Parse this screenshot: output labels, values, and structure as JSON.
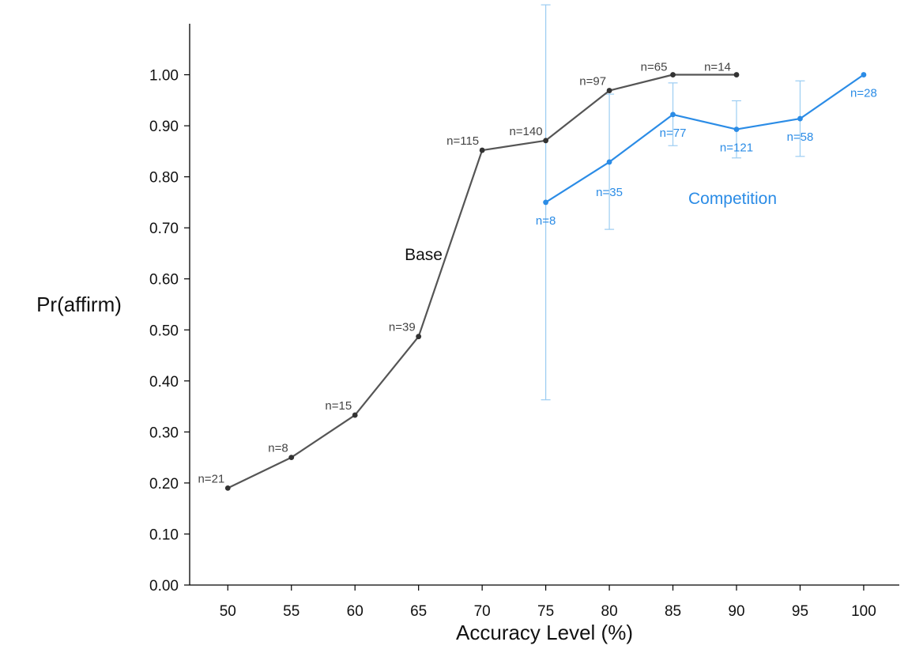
{
  "chart_data": {
    "type": "line",
    "xlabel": "Accuracy Level (%)",
    "ylabel": "Pr(affirm)",
    "xlim": [
      47,
      102.8
    ],
    "ylim": [
      0,
      1.1
    ],
    "x_ticks": [
      "50",
      "55",
      "60",
      "65",
      "70",
      "75",
      "80",
      "85",
      "90",
      "95",
      "100"
    ],
    "y_ticks": [
      "0.00",
      "0.10",
      "0.20",
      "0.30",
      "0.40",
      "0.50",
      "0.60",
      "0.70",
      "0.80",
      "0.90",
      "1.00"
    ],
    "grid": false,
    "series": [
      {
        "name": "Base",
        "color": "#555555",
        "marker_color": "#333333",
        "points": [
          {
            "x": 50,
            "y": 0.19,
            "n": "n=21"
          },
          {
            "x": 55,
            "y": 0.25,
            "n": "n=8"
          },
          {
            "x": 60,
            "y": 0.333,
            "n": "n=15"
          },
          {
            "x": 65,
            "y": 0.487,
            "n": "n=39"
          },
          {
            "x": 70,
            "y": 0.852,
            "n": "n=115"
          },
          {
            "x": 75,
            "y": 0.871,
            "n": "n=140"
          },
          {
            "x": 80,
            "y": 0.969,
            "n": "n=97"
          },
          {
            "x": 85,
            "y": 1.0,
            "n": "n=65"
          },
          {
            "x": 90,
            "y": 1.0,
            "n": "n=14"
          }
        ]
      },
      {
        "name": "Competition",
        "color": "#2b8ce6",
        "marker_color": "#2b8ce6",
        "error_color": "#9ccdf2",
        "points": [
          {
            "x": 75,
            "y": 0.75,
            "n": "n=8",
            "lo": 0.363,
            "hi": 1.137
          },
          {
            "x": 80,
            "y": 0.829,
            "n": "n=35",
            "lo": 0.697,
            "hi": 0.962
          },
          {
            "x": 85,
            "y": 0.922,
            "n": "n=77",
            "lo": 0.861,
            "hi": 0.984
          },
          {
            "x": 90,
            "y": 0.893,
            "n": "n=121",
            "lo": 0.837,
            "hi": 0.949
          },
          {
            "x": 95,
            "y": 0.914,
            "n": "n=58",
            "lo": 0.84,
            "hi": 0.988
          },
          {
            "x": 100,
            "y": 1.0,
            "n": "n=28"
          }
        ]
      }
    ]
  }
}
